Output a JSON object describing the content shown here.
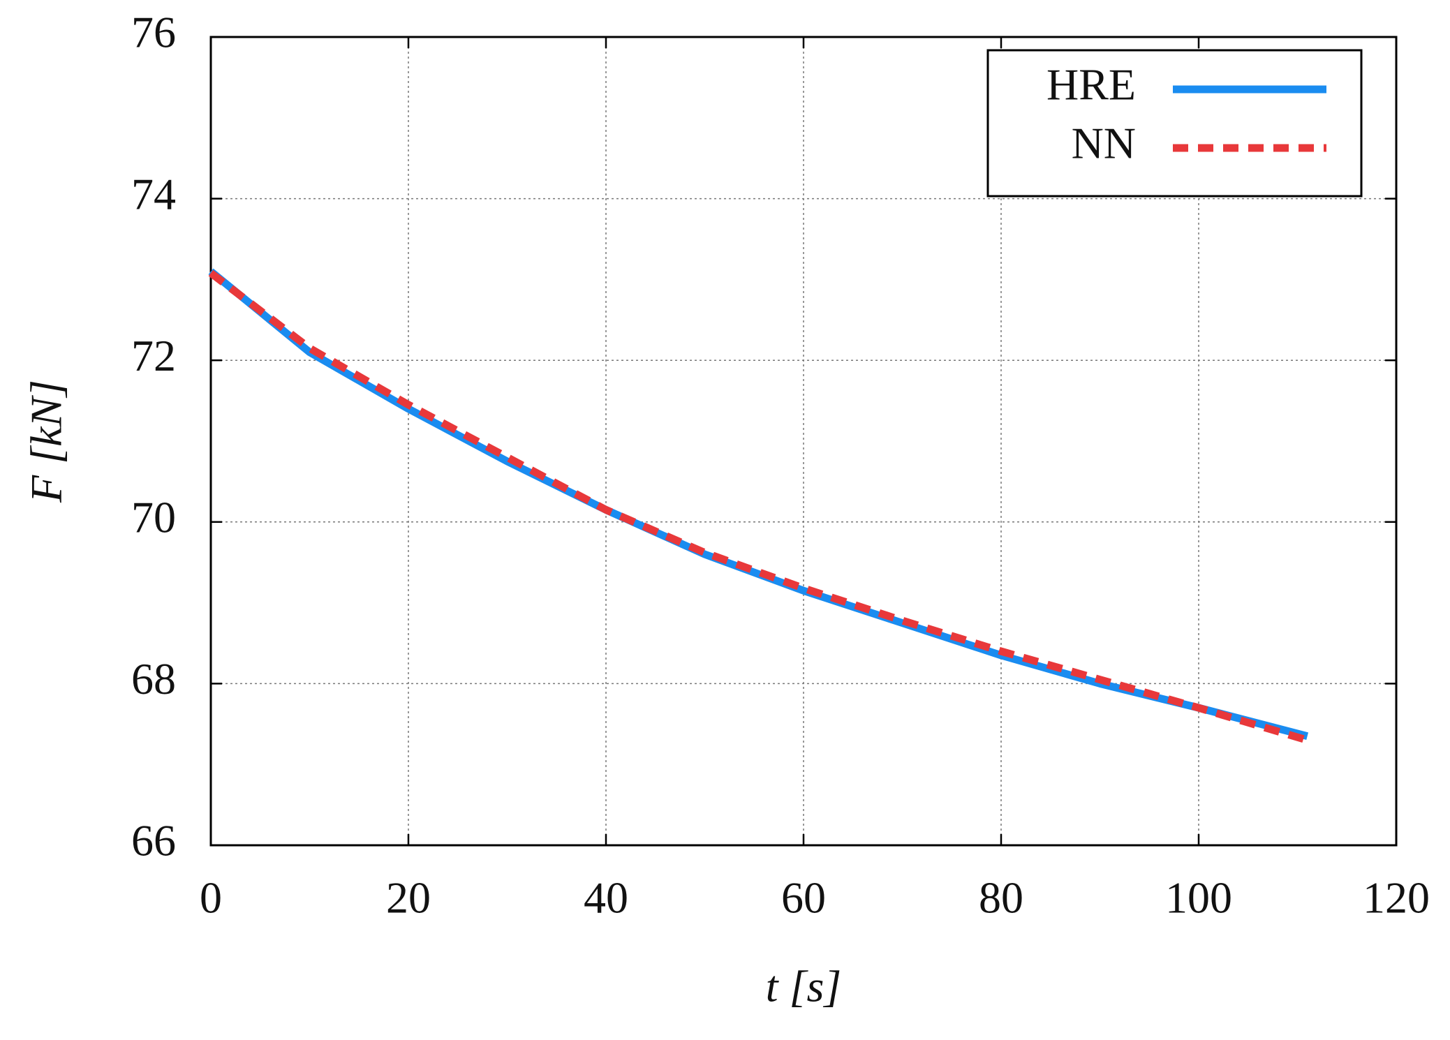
{
  "chart_data": {
    "type": "line",
    "x_label": "t [s]",
    "y_label": "F [kN]",
    "x": [
      0,
      10,
      20,
      30,
      40,
      50,
      60,
      70,
      80,
      90,
      100,
      111
    ],
    "series": [
      {
        "name": "HRE",
        "color": "#1a8cf0",
        "dash": false,
        "values": [
          73.1,
          72.1,
          71.4,
          70.75,
          70.15,
          69.6,
          69.15,
          68.75,
          68.35,
          68.0,
          67.7,
          67.35
        ]
      },
      {
        "name": "NN",
        "color": "#e8383a",
        "dash": true,
        "values": [
          73.08,
          72.15,
          71.45,
          70.8,
          70.15,
          69.62,
          69.18,
          68.78,
          68.4,
          68.05,
          67.7,
          67.3
        ]
      }
    ],
    "xlim": [
      0,
      120
    ],
    "xticks": [
      0,
      20,
      40,
      60,
      80,
      100,
      120
    ],
    "ylim": [
      66,
      76
    ],
    "yticks": [
      66,
      68,
      70,
      72,
      74,
      76
    ],
    "grid": true,
    "legend": "upper right"
  }
}
